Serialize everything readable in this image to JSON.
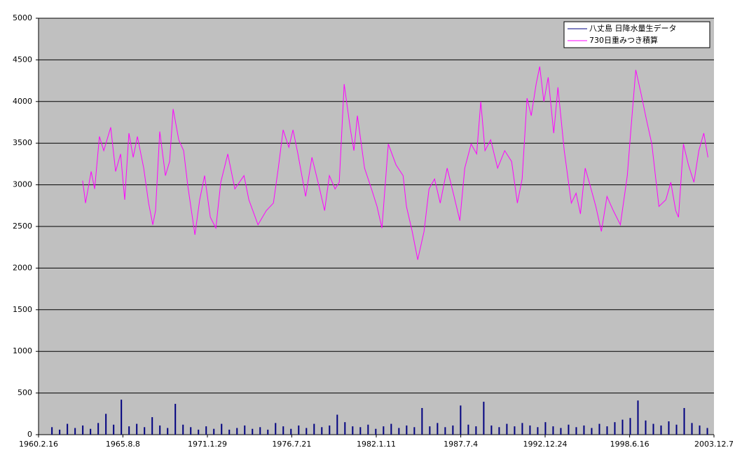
{
  "chart_data": {
    "type": "line",
    "xlim": [
      1960.13,
      2003.93
    ],
    "xticks": [
      {
        "value": 1960.13,
        "label": "1960.2.16"
      },
      {
        "value": 1965.6,
        "label": "1965.8.8"
      },
      {
        "value": 1971.08,
        "label": "1971.1.29"
      },
      {
        "value": 1976.55,
        "label": "1976.7.21"
      },
      {
        "value": 1982.03,
        "label": "1982.1.11"
      },
      {
        "value": 1987.51,
        "label": "1987.7.4"
      },
      {
        "value": 1992.98,
        "label": "1992.12.24"
      },
      {
        "value": 1998.46,
        "label": "1998.6.16"
      },
      {
        "value": 2003.93,
        "label": "2003.12.7"
      }
    ],
    "ylim": [
      0,
      5000
    ],
    "yticks": [
      0,
      500,
      1000,
      1500,
      2000,
      2500,
      3000,
      3500,
      4000,
      4500,
      5000
    ],
    "grid": true,
    "legend": "top-right",
    "series": [
      {
        "name": "八丈島 日降水量生データ",
        "color": "#000080",
        "type": "needle",
        "x": [
          1961.0,
          1961.5,
          1962.0,
          1962.5,
          1963.0,
          1963.5,
          1964.0,
          1964.5,
          1965.0,
          1965.5,
          1966.0,
          1966.5,
          1967.0,
          1967.5,
          1968.0,
          1968.5,
          1969.0,
          1969.5,
          1970.0,
          1970.5,
          1971.0,
          1971.5,
          1972.0,
          1972.5,
          1973.0,
          1973.5,
          1974.0,
          1974.5,
          1975.0,
          1975.5,
          1976.0,
          1976.5,
          1977.0,
          1977.5,
          1978.0,
          1978.5,
          1979.0,
          1979.5,
          1980.0,
          1980.5,
          1981.0,
          1981.5,
          1982.0,
          1982.5,
          1983.0,
          1983.5,
          1984.0,
          1984.5,
          1985.0,
          1985.5,
          1986.0,
          1986.5,
          1987.0,
          1987.5,
          1988.0,
          1988.5,
          1989.0,
          1989.5,
          1990.0,
          1990.5,
          1991.0,
          1991.5,
          1992.0,
          1992.5,
          1993.0,
          1993.5,
          1994.0,
          1994.5,
          1995.0,
          1995.5,
          1996.0,
          1996.5,
          1997.0,
          1997.5,
          1998.0,
          1998.5,
          1999.0,
          1999.5,
          2000.0,
          2000.5,
          2001.0,
          2001.5,
          2002.0,
          2002.5,
          2003.0,
          2003.5
        ],
        "values": [
          90,
          60,
          130,
          80,
          110,
          70,
          140,
          250,
          120,
          420,
          100,
          130,
          90,
          210,
          110,
          80,
          370,
          120,
          90,
          60,
          100,
          70,
          130,
          60,
          80,
          110,
          70,
          90,
          60,
          140,
          100,
          70,
          110,
          80,
          130,
          90,
          110,
          240,
          150,
          100,
          90,
          120,
          70,
          100,
          130,
          80,
          110,
          90,
          320,
          100,
          140,
          90,
          110,
          350,
          120,
          100,
          395,
          110,
          90,
          130,
          100,
          140,
          110,
          90,
          150,
          100,
          80,
          120,
          90,
          110,
          80,
          130,
          100,
          150,
          180,
          200,
          410,
          170,
          130,
          110,
          160,
          120,
          320,
          140,
          110,
          80
        ]
      },
      {
        "name": "730日重みつき積算",
        "color": "#ff00ff",
        "type": "line",
        "x": [
          1962.99,
          1963.18,
          1963.54,
          1963.77,
          1964.08,
          1964.36,
          1964.81,
          1965.13,
          1965.45,
          1965.72,
          1965.99,
          1966.27,
          1966.54,
          1966.95,
          1967.27,
          1967.54,
          1967.72,
          1967.99,
          1968.36,
          1968.63,
          1968.86,
          1969.22,
          1969.54,
          1969.81,
          1970.27,
          1970.58,
          1970.9,
          1971.27,
          1971.63,
          1971.95,
          1972.4,
          1972.86,
          1973.45,
          1973.77,
          1974.36,
          1974.9,
          1975.36,
          1975.68,
          1975.99,
          1976.36,
          1976.63,
          1976.95,
          1977.45,
          1977.86,
          1978.31,
          1978.68,
          1978.99,
          1979.36,
          1979.63,
          1979.95,
          1980.36,
          1980.58,
          1980.81,
          1981.27,
          1981.72,
          1982.08,
          1982.4,
          1982.81,
          1983.31,
          1983.77,
          1983.99,
          1984.36,
          1984.72,
          1985.13,
          1985.45,
          1985.81,
          1986.18,
          1986.63,
          1987.08,
          1987.45,
          1987.77,
          1988.18,
          1988.54,
          1988.81,
          1989.08,
          1989.45,
          1989.9,
          1990.36,
          1990.81,
          1991.18,
          1991.49,
          1991.81,
          1992.08,
          1992.4,
          1992.63,
          1992.9,
          1993.18,
          1993.54,
          1993.81,
          1994.22,
          1994.68,
          1994.99,
          1995.27,
          1995.58,
          1995.9,
          1996.27,
          1996.63,
          1996.99,
          1997.4,
          1997.86,
          1998.31,
          1998.54,
          1998.86,
          1999.22,
          1999.54,
          1999.9,
          2000.36,
          2000.81,
          2001.13,
          2001.45,
          2001.63,
          2001.95,
          2002.27,
          2002.63,
          2002.95,
          2003.27,
          2003.54
        ],
        "values": [
          3050,
          2780,
          3160,
          2950,
          3580,
          3410,
          3690,
          3160,
          3370,
          2820,
          3620,
          3330,
          3580,
          3200,
          2780,
          2520,
          2690,
          3640,
          3110,
          3280,
          3910,
          3540,
          3410,
          2990,
          2400,
          2820,
          3110,
          2610,
          2480,
          3030,
          3370,
          2950,
          3110,
          2820,
          2520,
          2690,
          2780,
          3200,
          3660,
          3450,
          3660,
          3370,
          2860,
          3330,
          2990,
          2690,
          3110,
          2950,
          3030,
          4210,
          3660,
          3410,
          3830,
          3200,
          2950,
          2740,
          2480,
          3490,
          3240,
          3110,
          2740,
          2440,
          2100,
          2440,
          2950,
          3070,
          2780,
          3200,
          2860,
          2570,
          3200,
          3490,
          3370,
          4000,
          3410,
          3540,
          3200,
          3410,
          3280,
          2780,
          3070,
          4040,
          3830,
          4210,
          4420,
          4000,
          4290,
          3620,
          4170,
          3410,
          2780,
          2900,
          2650,
          3200,
          2990,
          2740,
          2440,
          2860,
          2690,
          2520,
          3110,
          3660,
          4380,
          4080,
          3790,
          3490,
          2740,
          2820,
          3030,
          2690,
          2610,
          3490,
          3240,
          3030,
          3410,
          3620,
          3330
        ]
      }
    ]
  }
}
